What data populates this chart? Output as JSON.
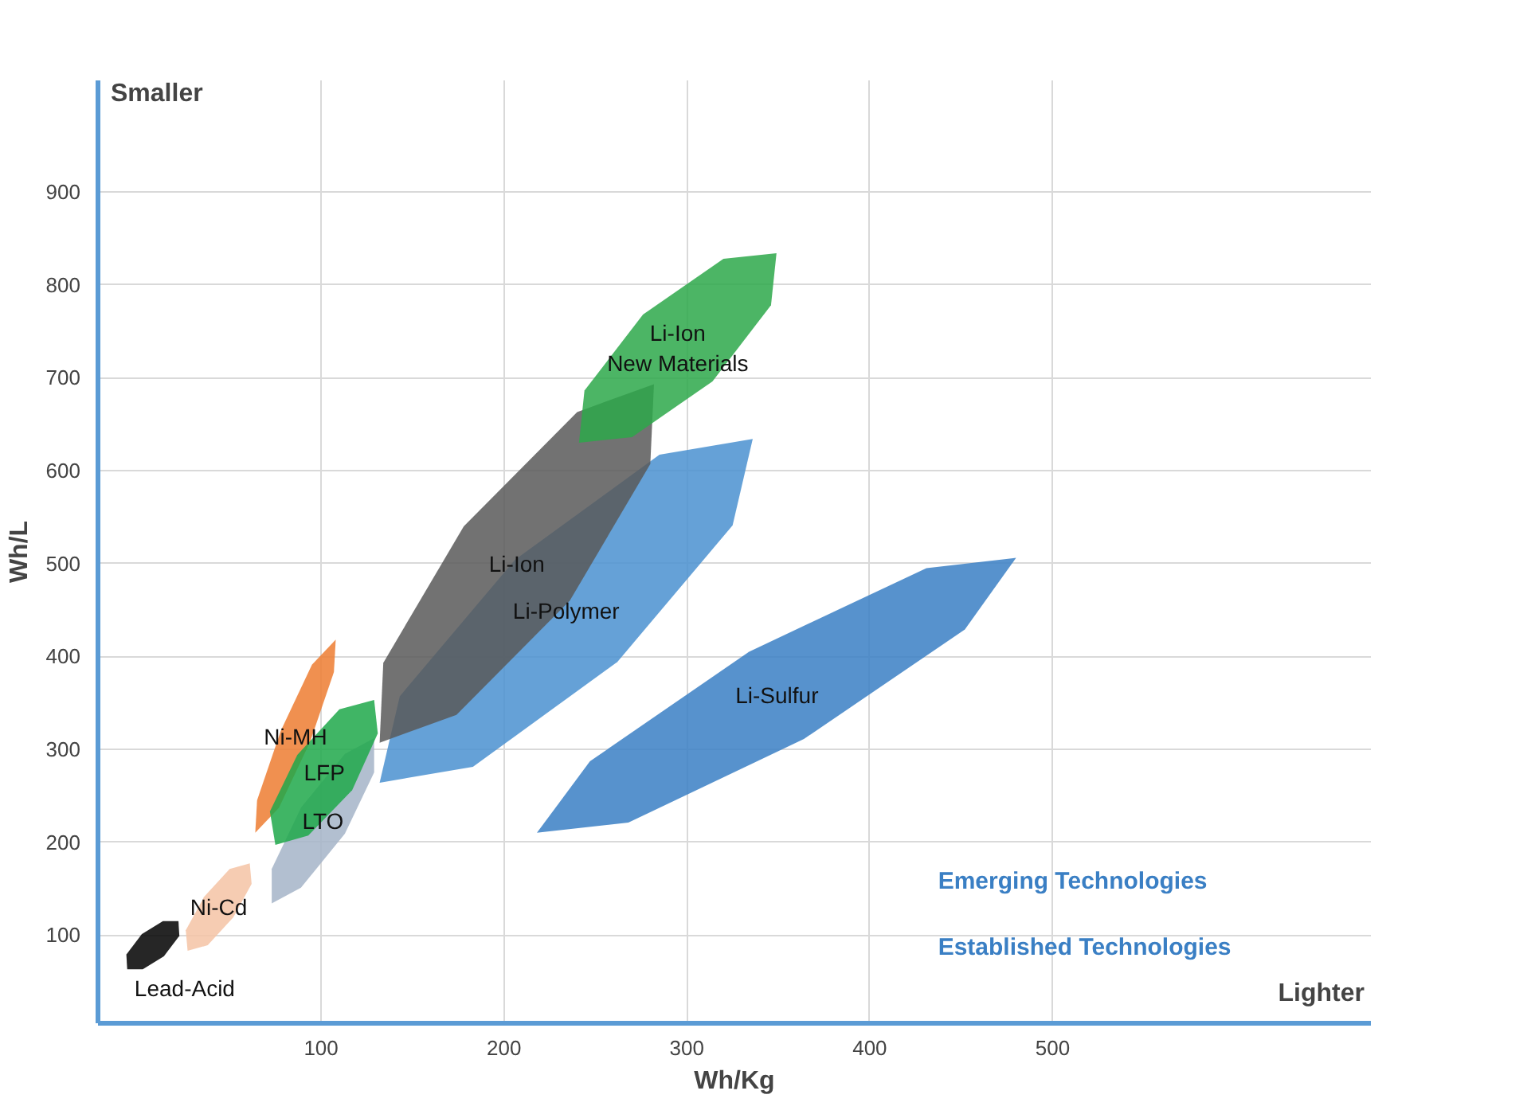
{
  "chart_data": {
    "type": "area",
    "xlabel": "Wh/Kg",
    "ylabel": "Wh/L",
    "xlim": [
      -22,
      674
    ],
    "ylim": [
      5,
      1020
    ],
    "xticks": [
      100,
      200,
      300,
      400,
      500
    ],
    "yticks": [
      100,
      200,
      300,
      400,
      500,
      600,
      700,
      800,
      900
    ],
    "grid": true,
    "annotations": [
      "Emerging Technologies",
      "Established Technologies",
      "Smaller",
      "Lighter"
    ],
    "series": [
      {
        "name": "Lead-Acid",
        "color": "#000000",
        "x": [
          22,
          22.5,
          14,
          2.5,
          -6,
          -6.5,
          2,
          13.5
        ],
        "values": [
          115,
          99,
          77,
          63,
          63,
          79,
          101,
          115
        ]
      },
      {
        "name": "Ni-Cd",
        "color": "#f4c3a4",
        "x": [
          61,
          62,
          52,
          38,
          27,
          26,
          36,
          50
        ],
        "values": [
          177,
          155,
          119,
          89,
          83,
          105,
          141,
          171
        ]
      },
      {
        "name": "Ni-MH",
        "color": "#ed7d31",
        "x": [
          108,
          107,
          94,
          77,
          64,
          65,
          78,
          95
        ],
        "values": [
          418,
          383,
          308,
          237,
          210,
          245,
          320,
          391
        ]
      },
      {
        "name": "LTO",
        "color": "#a5b4c8",
        "x": [
          129,
          129,
          113,
          89,
          73,
          73,
          89,
          113
        ],
        "values": [
          312,
          275,
          209,
          151,
          134,
          171,
          237,
          295
        ]
      },
      {
        "name": "LFP",
        "color": "#1fa84a",
        "x": [
          129,
          131,
          117,
          93,
          75,
          72,
          87,
          110
        ],
        "values": [
          353,
          317,
          256,
          207,
          197,
          233,
          294,
          343
        ]
      },
      {
        "name": "Li-Sulfur",
        "color": "#3a7fc4",
        "x": [
          480,
          452,
          364,
          268,
          218,
          247,
          334,
          431
        ],
        "values": [
          506,
          429,
          311,
          221,
          210,
          287,
          405,
          495
        ]
      },
      {
        "name": "Li-Polymer",
        "color": "#4a90d0",
        "x": [
          336,
          325,
          262,
          183,
          132,
          143,
          206,
          285
        ],
        "values": [
          634,
          541,
          394,
          281,
          264,
          357,
          504,
          617
        ]
      },
      {
        "name": "Li-Ion",
        "color": "#595959",
        "x": [
          282,
          280,
          236,
          174,
          132,
          134,
          178,
          240
        ],
        "values": [
          693,
          607,
          460,
          337,
          307,
          393,
          540,
          663
        ]
      },
      {
        "name": "Li-Ion\nNew Materials",
        "color": "#2da84a",
        "x": [
          349,
          346,
          314,
          270,
          241,
          244,
          276,
          320
        ],
        "values": [
          834,
          778,
          696,
          636,
          630,
          686,
          768,
          828
        ]
      }
    ]
  }
}
